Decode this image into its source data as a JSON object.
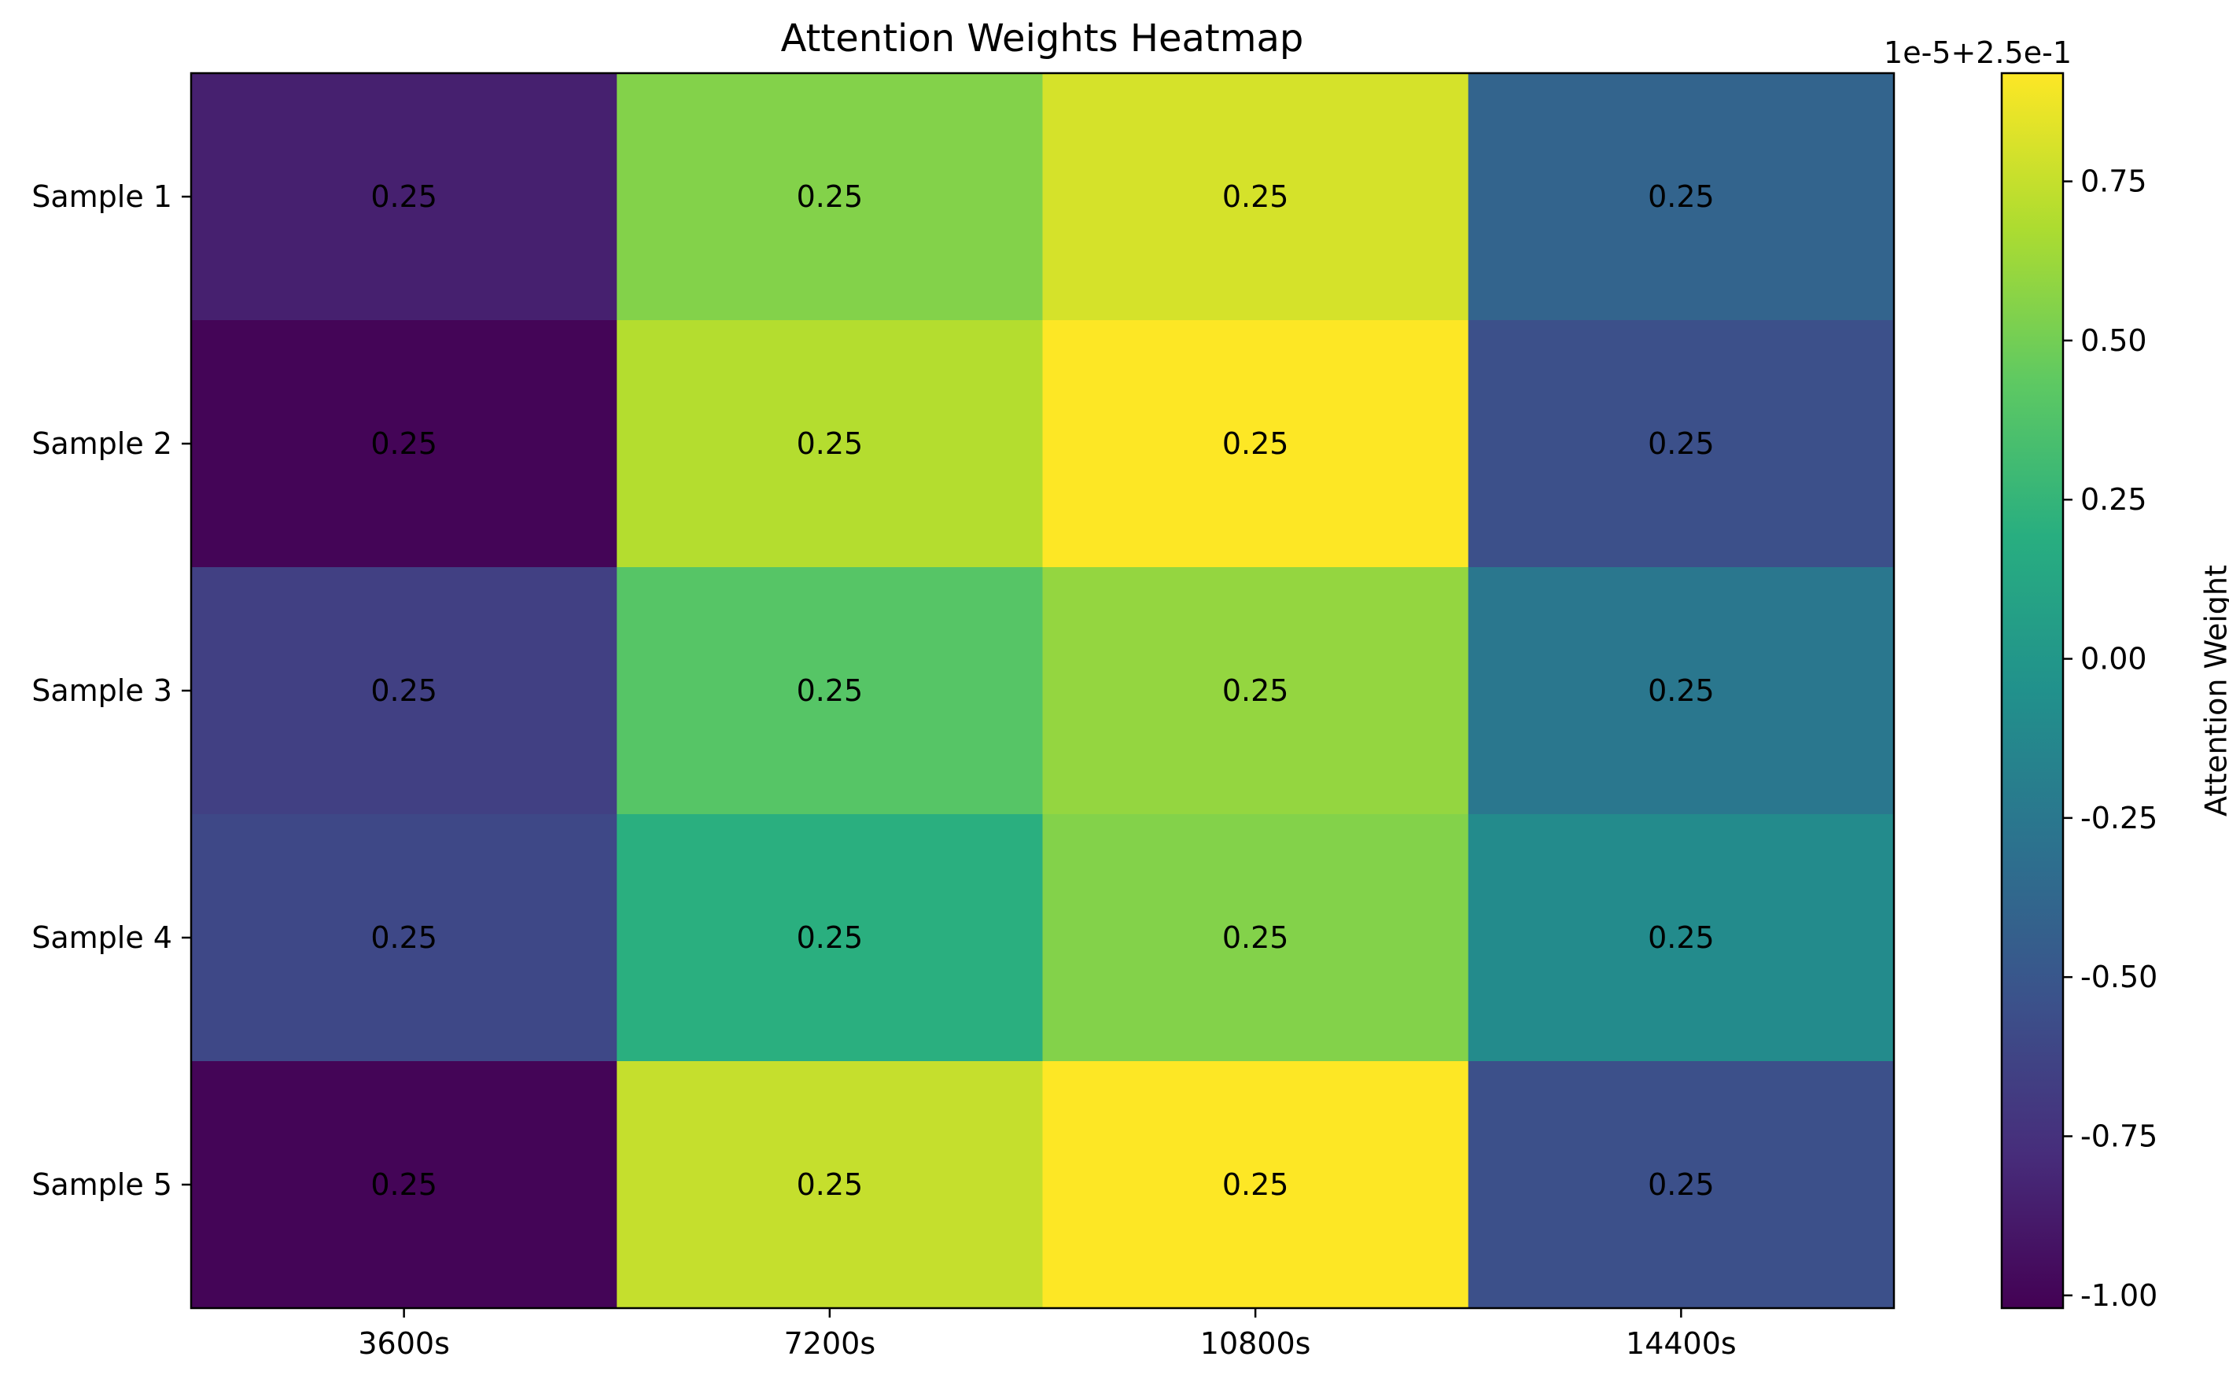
{
  "chart_data": {
    "type": "heatmap",
    "title": "Attention Weights Heatmap",
    "xlabel": "",
    "ylabel": "",
    "x_categories": [
      "3600s",
      "7200s",
      "10800s",
      "14400s"
    ],
    "y_categories": [
      "Sample 1",
      "Sample 2",
      "Sample 3",
      "Sample 4",
      "Sample 5"
    ],
    "values_offset_1e-5": [
      [
        -0.85,
        0.55,
        0.8,
        -0.4
      ],
      [
        -1.0,
        0.7,
        0.92,
        -0.55
      ],
      [
        -0.65,
        0.4,
        0.6,
        -0.25
      ],
      [
        -0.6,
        0.2,
        0.55,
        -0.1
      ],
      [
        -1.0,
        0.75,
        0.92,
        -0.55
      ]
    ],
    "cell_labels": [
      [
        "0.25",
        "0.25",
        "0.25",
        "0.25"
      ],
      [
        "0.25",
        "0.25",
        "0.25",
        "0.25"
      ],
      [
        "0.25",
        "0.25",
        "0.25",
        "0.25"
      ],
      [
        "0.25",
        "0.25",
        "0.25",
        "0.25"
      ],
      [
        "0.25",
        "0.25",
        "0.25",
        "0.25"
      ]
    ],
    "colormap": "viridis",
    "colorbar": {
      "label": "Attention Weight",
      "offset_text": "1e-5+2.5e-1",
      "range": [
        -1.02,
        0.92
      ],
      "ticks": [
        -1.0,
        -0.75,
        -0.5,
        -0.25,
        0.0,
        0.25,
        0.5,
        0.75
      ],
      "tick_labels": [
        "-1.00",
        "-0.75",
        "-0.50",
        "-0.25",
        "0.00",
        "0.25",
        "0.50",
        "0.75"
      ]
    }
  }
}
